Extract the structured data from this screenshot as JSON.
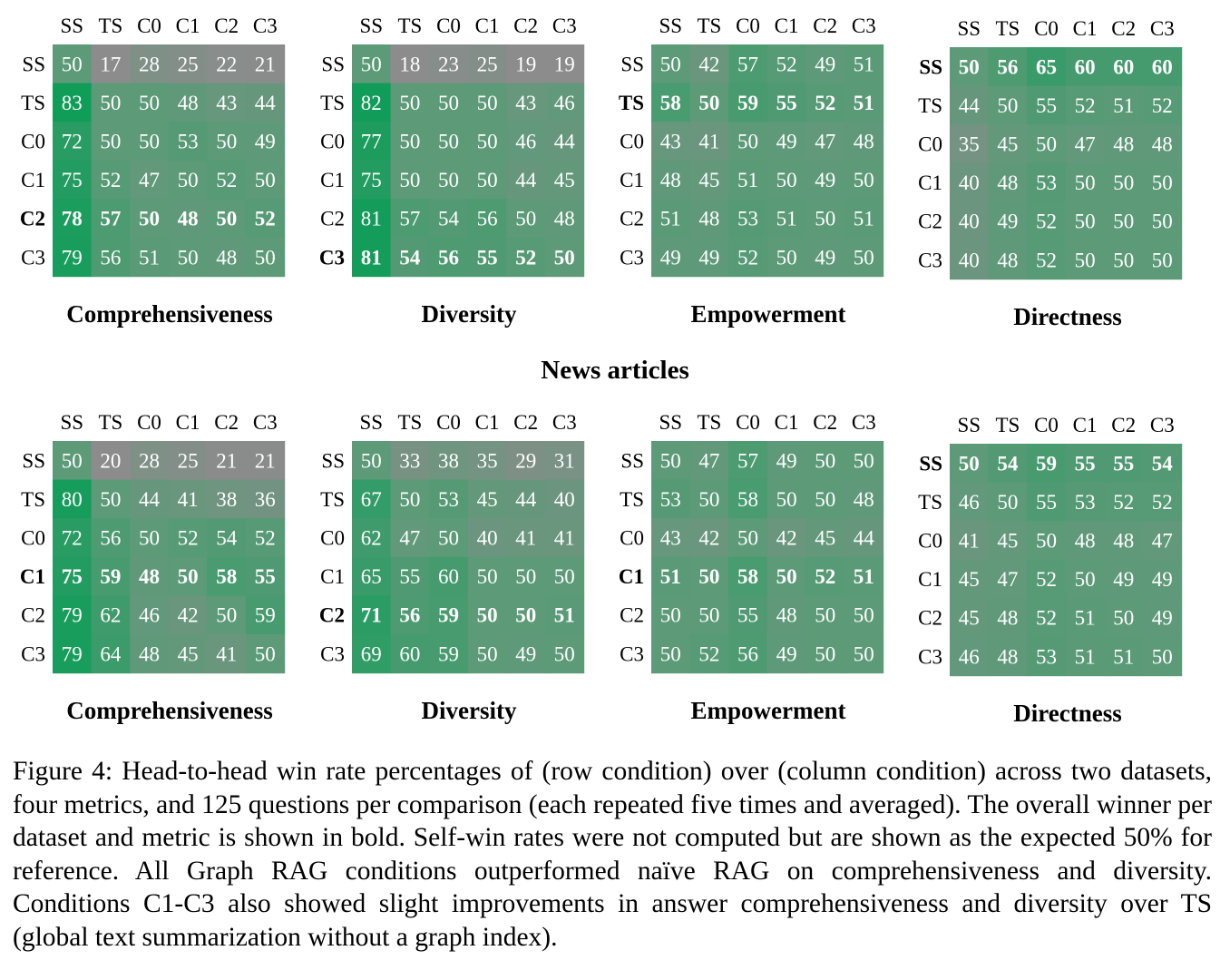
{
  "conditions": [
    "SS",
    "TS",
    "C0",
    "C1",
    "C2",
    "C3"
  ],
  "section_title": "News articles",
  "caption": "Figure 4: Head-to-head win rate percentages of (row condition) over (column condition) across two datasets, four metrics, and 125 questions per comparison (each repeated five times and averaged). The overall winner per dataset and metric is shown in bold. Self-win rates were not computed but are shown as the expected 50% for reference. All Graph RAG conditions outperformed naïve RAG on comprehensiveness and diversity. Conditions C1-C3 also showed slight improvements in answer comprehensiveness and diversity over TS (global text summarization without a graph index).",
  "colors": {
    "low": "#8c8c8c",
    "mid": "#5c9a78",
    "high": "#0f9d58",
    "text": "#ffffff"
  },
  "chart_data": [
    {
      "type": "heatmap",
      "title": "Comprehensiveness",
      "group": "top",
      "bold_row": "C2",
      "rows": [
        "SS",
        "TS",
        "C0",
        "C1",
        "C2",
        "C3"
      ],
      "cols": [
        "SS",
        "TS",
        "C0",
        "C1",
        "C2",
        "C3"
      ],
      "values": [
        [
          50,
          17,
          28,
          25,
          22,
          21
        ],
        [
          83,
          50,
          50,
          48,
          43,
          44
        ],
        [
          72,
          50,
          50,
          53,
          50,
          49
        ],
        [
          75,
          52,
          47,
          50,
          52,
          50
        ],
        [
          78,
          57,
          50,
          48,
          50,
          52
        ],
        [
          79,
          56,
          51,
          50,
          48,
          50
        ]
      ]
    },
    {
      "type": "heatmap",
      "title": "Diversity",
      "group": "top",
      "bold_row": "C3",
      "rows": [
        "SS",
        "TS",
        "C0",
        "C1",
        "C2",
        "C3"
      ],
      "cols": [
        "SS",
        "TS",
        "C0",
        "C1",
        "C2",
        "C3"
      ],
      "values": [
        [
          50,
          18,
          23,
          25,
          19,
          19
        ],
        [
          82,
          50,
          50,
          50,
          43,
          46
        ],
        [
          77,
          50,
          50,
          50,
          46,
          44
        ],
        [
          75,
          50,
          50,
          50,
          44,
          45
        ],
        [
          81,
          57,
          54,
          56,
          50,
          48
        ],
        [
          81,
          54,
          56,
          55,
          52,
          50
        ]
      ]
    },
    {
      "type": "heatmap",
      "title": "Empowerment",
      "group": "top",
      "bold_row": "TS",
      "rows": [
        "SS",
        "TS",
        "C0",
        "C1",
        "C2",
        "C3"
      ],
      "cols": [
        "SS",
        "TS",
        "C0",
        "C1",
        "C2",
        "C3"
      ],
      "values": [
        [
          50,
          42,
          57,
          52,
          49,
          51
        ],
        [
          58,
          50,
          59,
          55,
          52,
          51
        ],
        [
          43,
          41,
          50,
          49,
          47,
          48
        ],
        [
          48,
          45,
          51,
          50,
          49,
          50
        ],
        [
          51,
          48,
          53,
          51,
          50,
          51
        ],
        [
          49,
          49,
          52,
          50,
          49,
          50
        ]
      ]
    },
    {
      "type": "heatmap",
      "title": "Directness",
      "group": "top",
      "bold_row": "SS",
      "rows": [
        "SS",
        "TS",
        "C0",
        "C1",
        "C2",
        "C3"
      ],
      "cols": [
        "SS",
        "TS",
        "C0",
        "C1",
        "C2",
        "C3"
      ],
      "values": [
        [
          50,
          56,
          65,
          60,
          60,
          60
        ],
        [
          44,
          50,
          55,
          52,
          51,
          52
        ],
        [
          35,
          45,
          50,
          47,
          48,
          48
        ],
        [
          40,
          48,
          53,
          50,
          50,
          50
        ],
        [
          40,
          49,
          52,
          50,
          50,
          50
        ],
        [
          40,
          48,
          52,
          50,
          50,
          50
        ]
      ]
    },
    {
      "type": "heatmap",
      "title": "Comprehensiveness",
      "group": "bottom",
      "bold_row": "C1",
      "rows": [
        "SS",
        "TS",
        "C0",
        "C1",
        "C2",
        "C3"
      ],
      "cols": [
        "SS",
        "TS",
        "C0",
        "C1",
        "C2",
        "C3"
      ],
      "values": [
        [
          50,
          20,
          28,
          25,
          21,
          21
        ],
        [
          80,
          50,
          44,
          41,
          38,
          36
        ],
        [
          72,
          56,
          50,
          52,
          54,
          52
        ],
        [
          75,
          59,
          48,
          50,
          58,
          55
        ],
        [
          79,
          62,
          46,
          42,
          50,
          59
        ],
        [
          79,
          64,
          48,
          45,
          41,
          50
        ]
      ]
    },
    {
      "type": "heatmap",
      "title": "Diversity",
      "group": "bottom",
      "bold_row": "C2",
      "rows": [
        "SS",
        "TS",
        "C0",
        "C1",
        "C2",
        "C3"
      ],
      "cols": [
        "SS",
        "TS",
        "C0",
        "C1",
        "C2",
        "C3"
      ],
      "values": [
        [
          50,
          33,
          38,
          35,
          29,
          31
        ],
        [
          67,
          50,
          53,
          45,
          44,
          40
        ],
        [
          62,
          47,
          50,
          40,
          41,
          41
        ],
        [
          65,
          55,
          60,
          50,
          50,
          50
        ],
        [
          71,
          56,
          59,
          50,
          50,
          51
        ],
        [
          69,
          60,
          59,
          50,
          49,
          50
        ]
      ]
    },
    {
      "type": "heatmap",
      "title": "Empowerment",
      "group": "bottom",
      "bold_row": "C1",
      "rows": [
        "SS",
        "TS",
        "C0",
        "C1",
        "C2",
        "C3"
      ],
      "cols": [
        "SS",
        "TS",
        "C0",
        "C1",
        "C2",
        "C3"
      ],
      "values": [
        [
          50,
          47,
          57,
          49,
          50,
          50
        ],
        [
          53,
          50,
          58,
          50,
          50,
          48
        ],
        [
          43,
          42,
          50,
          42,
          45,
          44
        ],
        [
          51,
          50,
          58,
          50,
          52,
          51
        ],
        [
          50,
          50,
          55,
          48,
          50,
          50
        ],
        [
          50,
          52,
          56,
          49,
          50,
          50
        ]
      ]
    },
    {
      "type": "heatmap",
      "title": "Directness",
      "group": "bottom",
      "bold_row": "SS",
      "rows": [
        "SS",
        "TS",
        "C0",
        "C1",
        "C2",
        "C3"
      ],
      "cols": [
        "SS",
        "TS",
        "C0",
        "C1",
        "C2",
        "C3"
      ],
      "values": [
        [
          50,
          54,
          59,
          55,
          55,
          54
        ],
        [
          46,
          50,
          55,
          53,
          52,
          52
        ],
        [
          41,
          45,
          50,
          48,
          48,
          47
        ],
        [
          45,
          47,
          52,
          50,
          49,
          49
        ],
        [
          45,
          48,
          52,
          51,
          50,
          49
        ],
        [
          46,
          48,
          53,
          51,
          51,
          50
        ]
      ]
    }
  ]
}
